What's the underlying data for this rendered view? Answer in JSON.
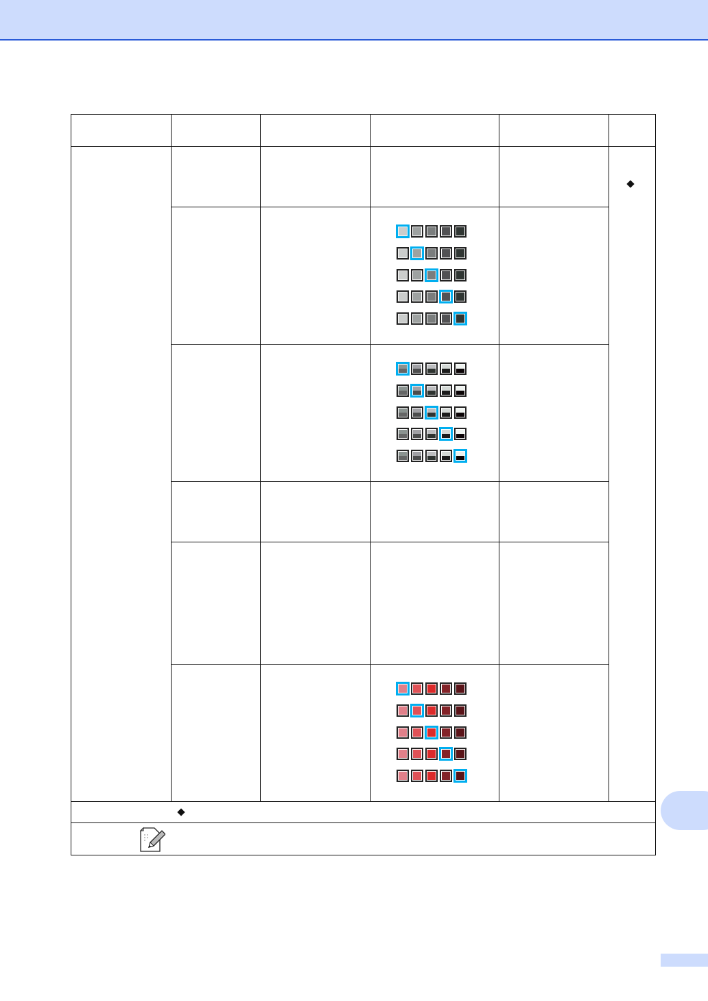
{
  "colors": {
    "header_band": "#cddcfd",
    "header_rule": "#2a5bd7",
    "selection": "#00aeef"
  },
  "swatch_grids": [
    {
      "name": "gray-levels",
      "kind": "solid",
      "colors": [
        "#cbcdcc",
        "#9ea2a1",
        "#7a7d7d",
        "#525254",
        "#303633"
      ],
      "selected": [
        0,
        1,
        2,
        3,
        4
      ]
    },
    {
      "name": "contrast-levels",
      "kind": "split",
      "top": [
        "#8a9390",
        "#a1a1a5",
        "#bcbdbf",
        "#d4d9d6",
        "#eef2ef"
      ],
      "bottom": [
        "#656666",
        "#4c4d4d",
        "#2e3330",
        "#1b1b1b",
        "#0b0406"
      ],
      "selected": [
        0,
        1,
        2,
        3,
        4
      ]
    },
    {
      "name": "red-levels",
      "kind": "solid",
      "colors": [
        "#e0808a",
        "#e05257",
        "#dc2a2a",
        "#832328",
        "#5a1419"
      ],
      "selected": [
        0,
        1,
        2,
        3,
        4
      ]
    }
  ],
  "icons": {
    "default_marker": "diamond-icon",
    "note": "note-pencil-icon"
  }
}
